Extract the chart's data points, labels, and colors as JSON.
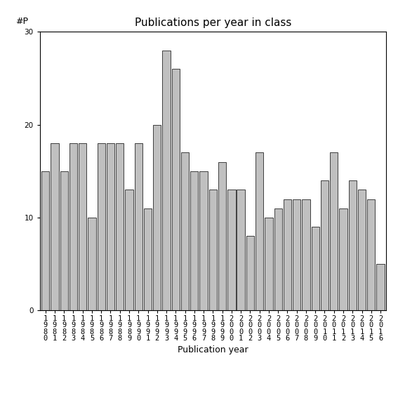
{
  "title": "Publications per year in class",
  "xlabel": "Publication year",
  "ylabel": "#P",
  "years": [
    "1980",
    "1981",
    "1982",
    "1983",
    "1984",
    "1985",
    "1986",
    "1987",
    "1988",
    "1989",
    "1990",
    "1991",
    "1992",
    "1993",
    "1994",
    "1995",
    "1996",
    "1997",
    "1998",
    "1999",
    "2000",
    "2001",
    "2002",
    "2003",
    "2004",
    "2005",
    "2006",
    "2007",
    "2008",
    "2009",
    "2010",
    "2011",
    "2012",
    "2013",
    "2014",
    "2015",
    "2016"
  ],
  "values": [
    15,
    18,
    15,
    18,
    18,
    10,
    18,
    18,
    18,
    13,
    18,
    11,
    20,
    28,
    26,
    17,
    15,
    15,
    13,
    16,
    13,
    13,
    8,
    17,
    10,
    11,
    12,
    12,
    12,
    9,
    14,
    17,
    11,
    14,
    13,
    12,
    5
  ],
  "bar_color": "#c0c0c0",
  "bar_edge_color": "#000000",
  "ylim": [
    0,
    30
  ],
  "yticks": [
    0,
    10,
    20,
    30
  ],
  "bg_color": "#ffffff",
  "title_fontsize": 11,
  "label_fontsize": 9,
  "tick_fontsize": 7.5
}
